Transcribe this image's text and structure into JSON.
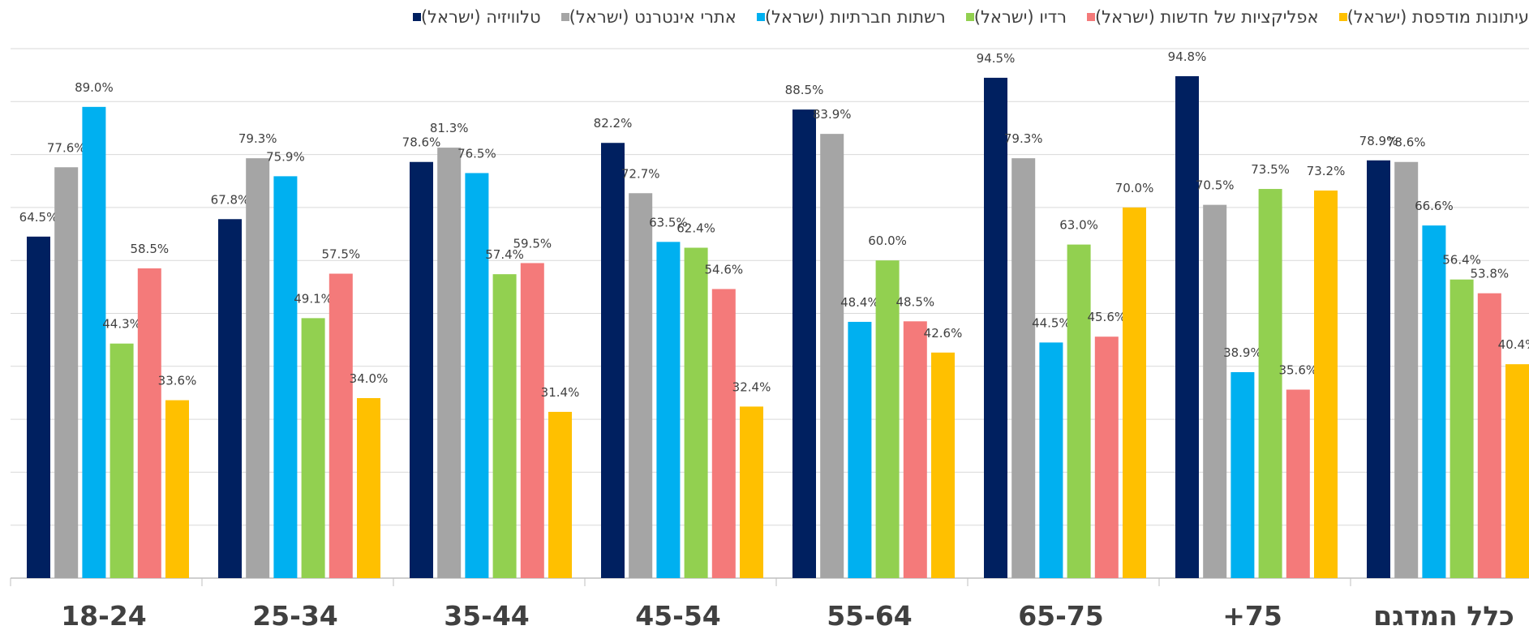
{
  "chart_data": {
    "type": "bar",
    "title": "",
    "xlabel": "",
    "ylabel": "",
    "ylim": [
      0,
      100
    ],
    "grid": true,
    "legend_position": "top",
    "categories": [
      "18-24",
      "25-34",
      "35-44",
      "45-54",
      "55-64",
      "65-75",
      "+75",
      "כלל המדגם"
    ],
    "series": [
      {
        "name": "טלוויזיה (ישראל)",
        "color": "#002060",
        "values": [
          64.5,
          67.8,
          78.6,
          82.2,
          88.5,
          94.5,
          94.8,
          78.9
        ],
        "labels": [
          "64.5%",
          "67.8%",
          "78.6%",
          "82.2%",
          "88.5%",
          "94.5%",
          "94.8%",
          "78.9%"
        ]
      },
      {
        "name": "אתרי אינטרנט (ישראל)",
        "color": "#A5A5A5",
        "values": [
          77.6,
          79.3,
          81.3,
          72.7,
          83.9,
          79.3,
          70.5,
          78.6
        ],
        "labels": [
          "77.6%",
          "79.3%",
          "81.3%",
          "72.7%",
          "83.9%",
          "79.3%",
          "70.5%",
          "78.6%"
        ]
      },
      {
        "name": "רשתות חברתיות (ישראל)",
        "color": "#00B0F0",
        "values": [
          89.0,
          75.9,
          76.5,
          63.5,
          48.4,
          44.5,
          38.9,
          66.6
        ],
        "labels": [
          "89.0%",
          "75.9%",
          "76.5%",
          "63.5%",
          "48.4%",
          "44.5%",
          "38.9%",
          "66.6%"
        ]
      },
      {
        "name": "רדיו (ישראל)",
        "color": "#92D050",
        "values": [
          44.3,
          49.1,
          57.4,
          62.4,
          60.0,
          63.0,
          73.5,
          56.4
        ],
        "labels": [
          "44.3%",
          "49.1%",
          "57.4%",
          "62.4%",
          "60.0%",
          "63.0%",
          "73.5%",
          "56.4%"
        ]
      },
      {
        "name": "אפליקציות של חדשות (ישראל)",
        "color": "#F47A7A",
        "values": [
          58.5,
          57.5,
          59.5,
          54.6,
          48.5,
          45.6,
          35.6,
          53.8
        ],
        "labels": [
          "58.5%",
          "57.5%",
          "59.5%",
          "54.6%",
          "48.5%",
          "45.6%",
          "35.6%",
          "53.8%"
        ]
      },
      {
        "name": "עיתונות מודפסת (ישראל)",
        "color": "#FFC000",
        "values": [
          33.6,
          34.0,
          31.4,
          32.4,
          42.6,
          70.0,
          73.2,
          40.4
        ],
        "labels": [
          "33.6%",
          "34.0%",
          "31.4%",
          "32.4%",
          "42.6%",
          "70.0%",
          "73.2%",
          "40.4%"
        ]
      }
    ]
  }
}
